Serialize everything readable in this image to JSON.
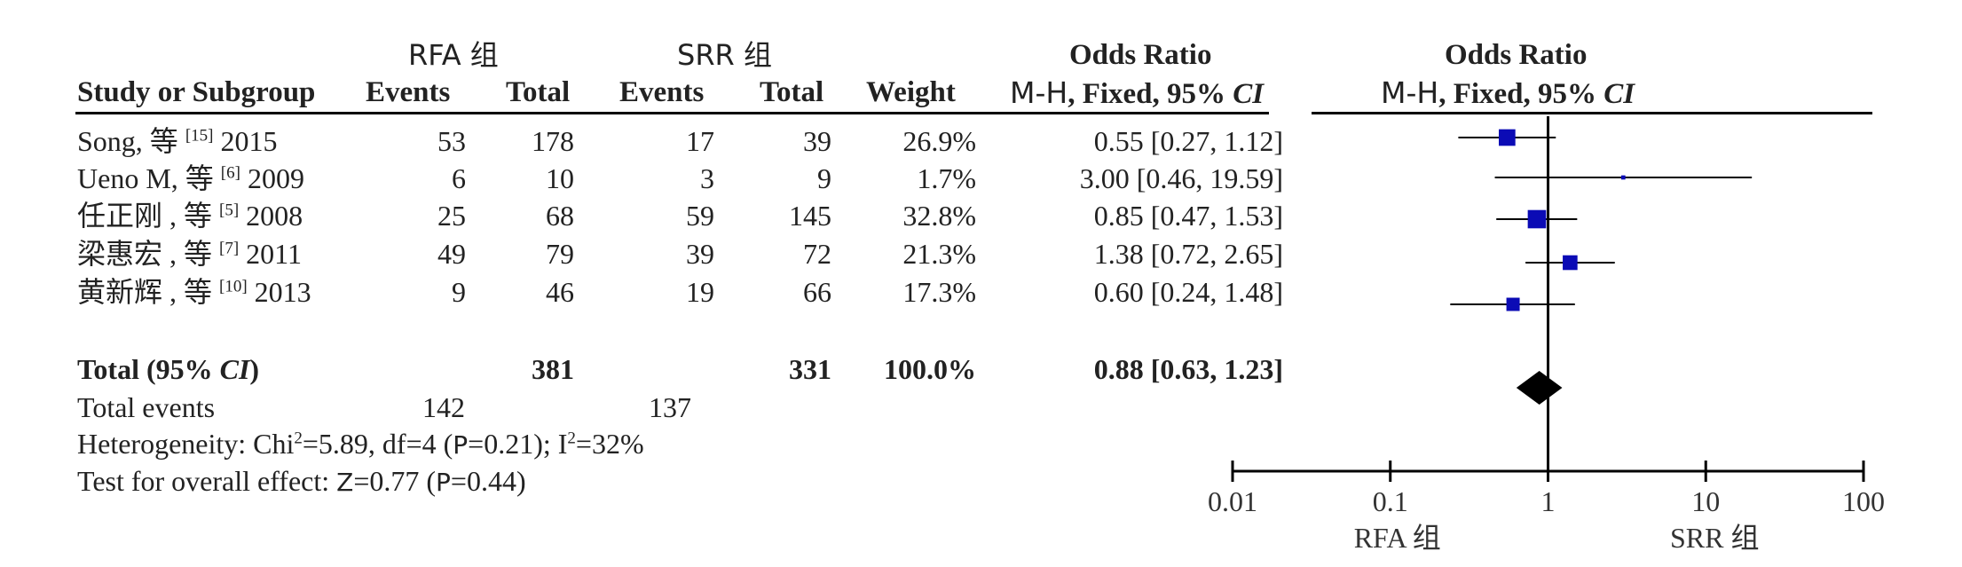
{
  "headers": {
    "group1": "RFA 组",
    "group2": "SRR 组",
    "study_col": "Study or Subgroup",
    "events": "Events",
    "total": "Total",
    "weight": "Weight",
    "or_title": "Odds Ratio",
    "or_method": "M-H, Fixed, 95% ",
    "ci": "CI",
    "plot_title": "Odds Ratio",
    "plot_method": "M-H, Fixed, 95% "
  },
  "studies": [
    {
      "name": "Song, 等 ",
      "ref": "[15]",
      "year": " 2015",
      "e1": "53",
      "n1": "178",
      "e2": "17",
      "n2": "39",
      "weight": "26.9%",
      "or_text": "0.55 [0.27, 1.12]"
    },
    {
      "name": "Ueno M, 等 ",
      "ref": "[6]",
      "year": " 2009",
      "e1": "6",
      "n1": "10",
      "e2": "3",
      "n2": "9",
      "weight": "1.7%",
      "or_text": "3.00 [0.46, 19.59]"
    },
    {
      "name": "任正刚 , 等 ",
      "ref": "[5]",
      "year": " 2008",
      "e1": "25",
      "n1": "68",
      "e2": "59",
      "n2": "145",
      "weight": "32.8%",
      "or_text": "0.85 [0.47, 1.53]"
    },
    {
      "name": "梁惠宏 , 等 ",
      "ref": "[7]",
      "year": " 2011",
      "e1": "49",
      "n1": "79",
      "e2": "39",
      "n2": "72",
      "weight": "21.3%",
      "or_text": "1.38 [0.72, 2.65]"
    },
    {
      "name": "黄新辉 , 等 ",
      "ref": "[10]",
      "year": " 2013",
      "e1": "9",
      "n1": "46",
      "e2": "19",
      "n2": "66",
      "weight": "17.3%",
      "or_text": "0.60 [0.24, 1.48]"
    }
  ],
  "total_row": {
    "label": "Total (95% ",
    "label_ci": "CI",
    "label_end": ")",
    "n1": "381",
    "n2": "331",
    "weight": "100.0%",
    "or_text": "0.88 [0.63, 1.23]"
  },
  "total_events": {
    "label": "Total events",
    "e1": "142",
    "e2": "137"
  },
  "heterogeneity": {
    "prefix": "Heterogeneity: Chi",
    "sup1": "2",
    "mid": "=5.89, df=4 (",
    "p": "P",
    "mid2": "=0.21); I",
    "sup2": "2",
    "end": "=32%"
  },
  "overall": {
    "prefix": "Test for overall effect: ",
    "z": "Z",
    "mid": "=0.77 (",
    "p": "P",
    "end": "=0.44)"
  },
  "colors": {
    "marker": "#0b0bb5",
    "diamond": "#000000",
    "line": "#000000"
  },
  "chart_data": {
    "type": "scatter",
    "xscale": "log",
    "xlim": [
      0.01,
      100
    ],
    "ticks": [
      0.01,
      0.1,
      1,
      10,
      100
    ],
    "tick_labels": [
      "0.01",
      "0.1",
      "1",
      "10",
      "100"
    ],
    "favours_left": "RFA 组",
    "favours_right": "SRR 组",
    "studies": [
      {
        "or": 0.55,
        "lo": 0.27,
        "hi": 1.12,
        "weight": 26.9
      },
      {
        "or": 3.0,
        "lo": 0.46,
        "hi": 19.59,
        "weight": 1.7
      },
      {
        "or": 0.85,
        "lo": 0.47,
        "hi": 1.53,
        "weight": 32.8
      },
      {
        "or": 1.38,
        "lo": 0.72,
        "hi": 2.65,
        "weight": 21.3
      },
      {
        "or": 0.6,
        "lo": 0.24,
        "hi": 1.48,
        "weight": 17.3
      }
    ],
    "pooled": {
      "or": 0.88,
      "lo": 0.63,
      "hi": 1.23
    }
  }
}
